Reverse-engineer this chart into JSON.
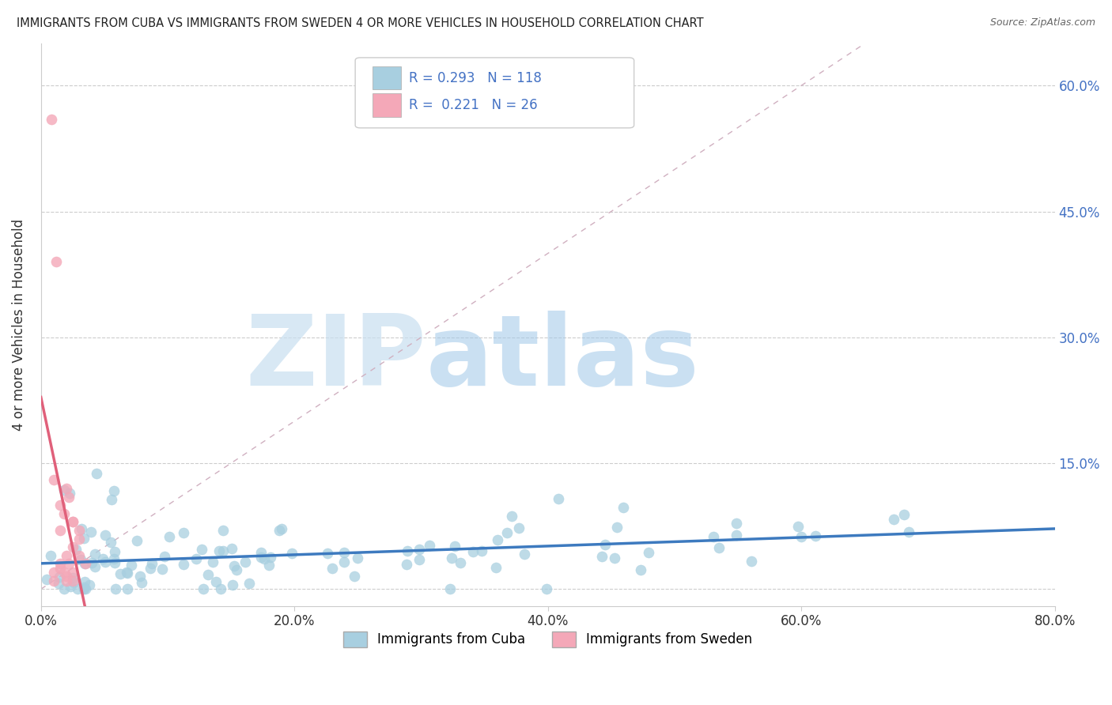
{
  "title": "IMMIGRANTS FROM CUBA VS IMMIGRANTS FROM SWEDEN 4 OR MORE VEHICLES IN HOUSEHOLD CORRELATION CHART",
  "source": "Source: ZipAtlas.com",
  "ylabel": "4 or more Vehicles in Household",
  "xlim": [
    0.0,
    0.8
  ],
  "ylim": [
    -0.02,
    0.65
  ],
  "xticks": [
    0.0,
    0.2,
    0.4,
    0.6,
    0.8
  ],
  "xtick_labels": [
    "0.0%",
    "20.0%",
    "40.0%",
    "60.0%",
    "80.0%"
  ],
  "yticks": [
    0.0,
    0.15,
    0.3,
    0.45,
    0.6
  ],
  "ytick_labels_right": [
    "",
    "15.0%",
    "30.0%",
    "45.0%",
    "60.0%"
  ],
  "legend_entries": [
    "Immigrants from Cuba",
    "Immigrants from Sweden"
  ],
  "cuba_color": "#a8cfe0",
  "sweden_color": "#f4a8b8",
  "cuba_line_color": "#3d7abf",
  "sweden_line_color": "#e0607a",
  "cuba_R": 0.293,
  "cuba_N": 118,
  "sweden_R": 0.221,
  "sweden_N": 26,
  "watermark_zip": "ZIP",
  "watermark_atlas": "atlas",
  "background_color": "#ffffff",
  "grid_color": "#cccccc",
  "title_color": "#222222",
  "axis_label_color": "#333333",
  "tick_color_right": "#4472c4",
  "legend_box_color": "#cccccc"
}
